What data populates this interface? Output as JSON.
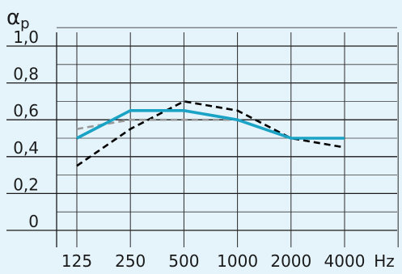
{
  "chart_data": {
    "type": "line",
    "title": "",
    "ylabel": "αp",
    "xlabel": "Hz",
    "categories": [
      "125",
      "250",
      "500",
      "1000",
      "2000",
      "4000"
    ],
    "ylim": [
      0,
      1.0
    ],
    "y_ticks": [
      0,
      0.2,
      0.4,
      0.6,
      0.8,
      1.0
    ],
    "y_tick_labels": [
      "0",
      "0,2",
      "0,4",
      "0,6",
      "0,8",
      "1,0"
    ],
    "grid": true,
    "series": [
      {
        "values": [
          0.35,
          0.55,
          0.7,
          0.65,
          0.5,
          0.45
        ],
        "color": "#000000",
        "style": "dashed"
      },
      {
        "values": [
          0.55,
          0.6,
          0.6,
          0.6,
          0.5,
          0.5
        ],
        "color": "#9a9a9a",
        "style": "dashed"
      },
      {
        "values": [
          0.5,
          0.65,
          0.65,
          0.6,
          0.5,
          0.5
        ],
        "color": "#1aa3c4",
        "style": "solid"
      }
    ]
  }
}
